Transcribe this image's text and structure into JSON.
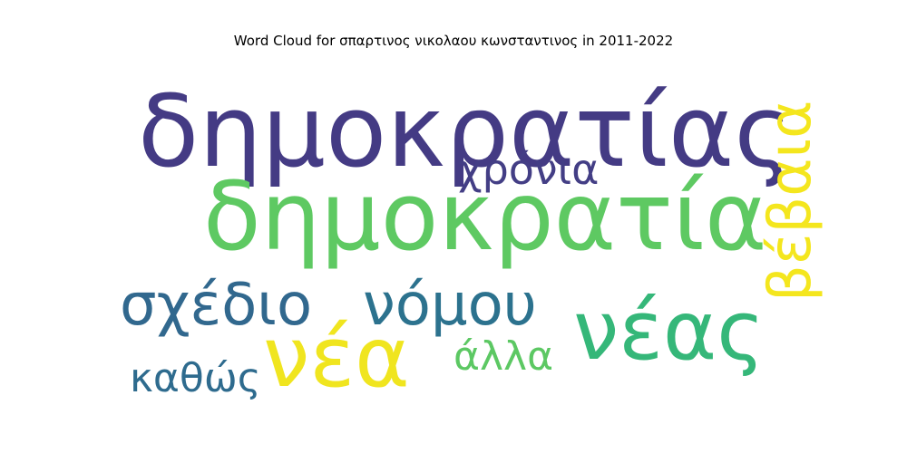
{
  "chart_data": {
    "type": "wordcloud",
    "title": "Word Cloud for σπαρτινος νικολαου κωνσταντινος in 2011-2022",
    "words": [
      {
        "text": "δημοκρατίας",
        "weight": 1.0,
        "color": "#443b84",
        "orientation": "horizontal"
      },
      {
        "text": "δημοκρατία",
        "weight": 0.93,
        "color": "#5ec962",
        "orientation": "horizontal"
      },
      {
        "text": "νέας",
        "weight": 0.82,
        "color": "#35b779",
        "orientation": "horizontal"
      },
      {
        "text": "νέα",
        "weight": 0.84,
        "color": "#f0e51f",
        "orientation": "horizontal"
      },
      {
        "text": "σχέδιο",
        "weight": 0.58,
        "color": "#31688e",
        "orientation": "horizontal"
      },
      {
        "text": "νόμου",
        "weight": 0.58,
        "color": "#2c728e",
        "orientation": "horizontal"
      },
      {
        "text": "βέβαια",
        "weight": 0.58,
        "color": "#f4e61e",
        "orientation": "vertical"
      },
      {
        "text": "χρόνια",
        "weight": 0.42,
        "color": "#433e85",
        "orientation": "horizontal"
      },
      {
        "text": "καθώς",
        "weight": 0.4,
        "color": "#2e6b8e",
        "orientation": "horizontal"
      },
      {
        "text": "άλλα",
        "weight": 0.37,
        "color": "#5cc863",
        "orientation": "horizontal"
      }
    ]
  }
}
